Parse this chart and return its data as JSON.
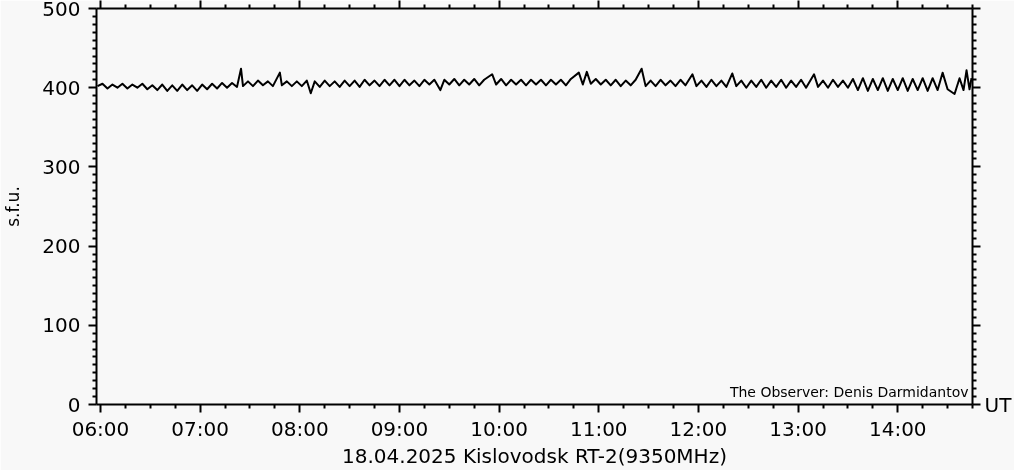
{
  "chart_data": {
    "type": "line",
    "title": "18.04.2025 Kislovodsk RT-2(9350MHz)",
    "xlabel": "UT",
    "ylabel": "s.f.u.",
    "annotations": [
      "The Observer: Denis Darmidantov"
    ],
    "xlim": [
      5.96,
      14.75
    ],
    "ylim": [
      0,
      500
    ],
    "xticks": [
      {
        "value": 6,
        "label": "06:00"
      },
      {
        "value": 6.25,
        "label": null
      },
      {
        "value": 6.5,
        "label": null
      },
      {
        "value": 6.75,
        "label": null
      },
      {
        "value": 7,
        "label": "07:00"
      },
      {
        "value": 7.25,
        "label": null
      },
      {
        "value": 7.5,
        "label": null
      },
      {
        "value": 7.75,
        "label": null
      },
      {
        "value": 8,
        "label": "08:00"
      },
      {
        "value": 8.25,
        "label": null
      },
      {
        "value": 8.5,
        "label": null
      },
      {
        "value": 8.75,
        "label": null
      },
      {
        "value": 9,
        "label": "09:00"
      },
      {
        "value": 9.25,
        "label": null
      },
      {
        "value": 9.5,
        "label": null
      },
      {
        "value": 9.75,
        "label": null
      },
      {
        "value": 10,
        "label": "10:00"
      },
      {
        "value": 10.25,
        "label": null
      },
      {
        "value": 10.5,
        "label": null
      },
      {
        "value": 10.75,
        "label": null
      },
      {
        "value": 11,
        "label": "11:00"
      },
      {
        "value": 11.25,
        "label": null
      },
      {
        "value": 11.5,
        "label": null
      },
      {
        "value": 11.75,
        "label": null
      },
      {
        "value": 12,
        "label": "12:00"
      },
      {
        "value": 12.25,
        "label": null
      },
      {
        "value": 12.5,
        "label": null
      },
      {
        "value": 12.75,
        "label": null
      },
      {
        "value": 13,
        "label": "13:00"
      },
      {
        "value": 13.25,
        "label": null
      },
      {
        "value": 13.5,
        "label": null
      },
      {
        "value": 13.75,
        "label": null
      },
      {
        "value": 14,
        "label": "14:00"
      },
      {
        "value": 14.25,
        "label": null
      },
      {
        "value": 14.5,
        "label": null
      },
      {
        "value": 14.75,
        "label": null
      }
    ],
    "yticks": [
      0,
      {
        "value": 10,
        "label": null
      },
      {
        "value": 20,
        "label": null
      },
      {
        "value": 30,
        "label": null
      },
      {
        "value": 40,
        "label": null
      },
      {
        "value": 50,
        "label": null
      },
      {
        "value": 60,
        "label": null
      },
      {
        "value": 70,
        "label": null
      },
      {
        "value": 80,
        "label": null
      },
      {
        "value": 90,
        "label": null
      },
      100,
      {
        "value": 110,
        "label": null
      },
      {
        "value": 120,
        "label": null
      },
      {
        "value": 130,
        "label": null
      },
      {
        "value": 140,
        "label": null
      },
      {
        "value": 150,
        "label": null
      },
      {
        "value": 160,
        "label": null
      },
      {
        "value": 170,
        "label": null
      },
      {
        "value": 180,
        "label": null
      },
      {
        "value": 190,
        "label": null
      },
      200,
      {
        "value": 210,
        "label": null
      },
      {
        "value": 220,
        "label": null
      },
      {
        "value": 230,
        "label": null
      },
      {
        "value": 240,
        "label": null
      },
      {
        "value": 250,
        "label": null
      },
      {
        "value": 260,
        "label": null
      },
      {
        "value": 270,
        "label": null
      },
      {
        "value": 280,
        "label": null
      },
      {
        "value": 290,
        "label": null
      },
      300,
      {
        "value": 310,
        "label": null
      },
      {
        "value": 320,
        "label": null
      },
      {
        "value": 330,
        "label": null
      },
      {
        "value": 340,
        "label": null
      },
      {
        "value": 350,
        "label": null
      },
      {
        "value": 360,
        "label": null
      },
      {
        "value": 370,
        "label": null
      },
      {
        "value": 380,
        "label": null
      },
      {
        "value": 390,
        "label": null
      },
      400,
      {
        "value": 410,
        "label": null
      },
      {
        "value": 420,
        "label": null
      },
      {
        "value": 430,
        "label": null
      },
      {
        "value": 440,
        "label": null
      },
      {
        "value": 450,
        "label": null
      },
      {
        "value": 460,
        "label": null
      },
      {
        "value": 470,
        "label": null
      },
      {
        "value": 480,
        "label": null
      },
      {
        "value": 490,
        "label": null
      },
      500
    ],
    "series": [
      {
        "color": "#000000",
        "x": [
          5.97,
          6.02,
          6.07,
          6.12,
          6.17,
          6.22,
          6.27,
          6.32,
          6.37,
          6.42,
          6.47,
          6.52,
          6.57,
          6.62,
          6.67,
          6.72,
          6.77,
          6.82,
          6.87,
          6.92,
          6.97,
          7.02,
          7.07,
          7.12,
          7.17,
          7.22,
          7.27,
          7.32,
          7.37,
          7.41,
          7.43,
          7.48,
          7.53,
          7.58,
          7.63,
          7.68,
          7.73,
          7.8,
          7.82,
          7.87,
          7.92,
          7.97,
          8.02,
          8.07,
          8.11,
          8.15,
          8.2,
          8.25,
          8.3,
          8.35,
          8.4,
          8.45,
          8.5,
          8.55,
          8.6,
          8.65,
          8.7,
          8.75,
          8.8,
          8.85,
          8.9,
          8.95,
          9.0,
          9.05,
          9.1,
          9.15,
          9.2,
          9.25,
          9.3,
          9.35,
          9.41,
          9.45,
          9.5,
          9.55,
          9.6,
          9.65,
          9.7,
          9.75,
          9.8,
          9.85,
          9.93,
          9.97,
          10.02,
          10.07,
          10.12,
          10.17,
          10.22,
          10.27,
          10.32,
          10.37,
          10.42,
          10.47,
          10.52,
          10.57,
          10.62,
          10.67,
          10.72,
          10.8,
          10.84,
          10.88,
          10.92,
          10.97,
          11.02,
          11.07,
          11.12,
          11.17,
          11.22,
          11.27,
          11.32,
          11.37,
          11.43,
          11.47,
          11.52,
          11.57,
          11.62,
          11.67,
          11.72,
          11.77,
          11.82,
          11.87,
          11.94,
          11.98,
          12.03,
          12.08,
          12.13,
          12.18,
          12.23,
          12.28,
          12.34,
          12.38,
          12.43,
          12.48,
          12.53,
          12.58,
          12.63,
          12.68,
          12.73,
          12.78,
          12.83,
          12.88,
          12.93,
          12.98,
          13.03,
          13.08,
          13.16,
          13.2,
          13.25,
          13.3,
          13.35,
          13.4,
          13.45,
          13.5,
          13.55,
          13.6,
          13.65,
          13.7,
          13.75,
          13.8,
          13.85,
          13.9,
          13.95,
          14.0,
          14.05,
          14.1,
          14.15,
          14.2,
          14.25,
          14.3,
          14.35,
          14.4,
          14.45,
          14.5,
          14.57,
          14.62,
          14.66,
          14.69,
          14.72,
          14.74
        ],
        "values": [
          402,
          405,
          399,
          404,
          400,
          405,
          399,
          404,
          400,
          405,
          398,
          403,
          397,
          404,
          396,
          403,
          396,
          404,
          397,
          403,
          396,
          404,
          398,
          405,
          399,
          406,
          400,
          406,
          401,
          424,
          402,
          408,
          402,
          409,
          403,
          408,
          402,
          419,
          403,
          408,
          402,
          408,
          402,
          409,
          393,
          408,
          401,
          409,
          402,
          408,
          401,
          409,
          402,
          409,
          401,
          410,
          403,
          409,
          402,
          410,
          403,
          410,
          402,
          410,
          403,
          409,
          402,
          410,
          404,
          410,
          397,
          410,
          404,
          411,
          403,
          410,
          404,
          411,
          403,
          410,
          417,
          404,
          411,
          403,
          410,
          404,
          410,
          403,
          410,
          404,
          410,
          403,
          410,
          404,
          410,
          403,
          411,
          419,
          404,
          420,
          405,
          411,
          404,
          410,
          403,
          410,
          402,
          409,
          403,
          410,
          424,
          402,
          409,
          402,
          410,
          403,
          409,
          402,
          410,
          403,
          417,
          402,
          409,
          401,
          410,
          402,
          409,
          401,
          418,
          402,
          409,
          400,
          409,
          401,
          410,
          400,
          409,
          401,
          410,
          400,
          409,
          401,
          410,
          400,
          417,
          401,
          409,
          400,
          410,
          401,
          409,
          400,
          411,
          397,
          412,
          396,
          411,
          397,
          412,
          396,
          411,
          397,
          412,
          396,
          411,
          397,
          412,
          396,
          412,
          397,
          419,
          398,
          392,
          412,
          397,
          422,
          398,
          412
        ]
      }
    ]
  }
}
